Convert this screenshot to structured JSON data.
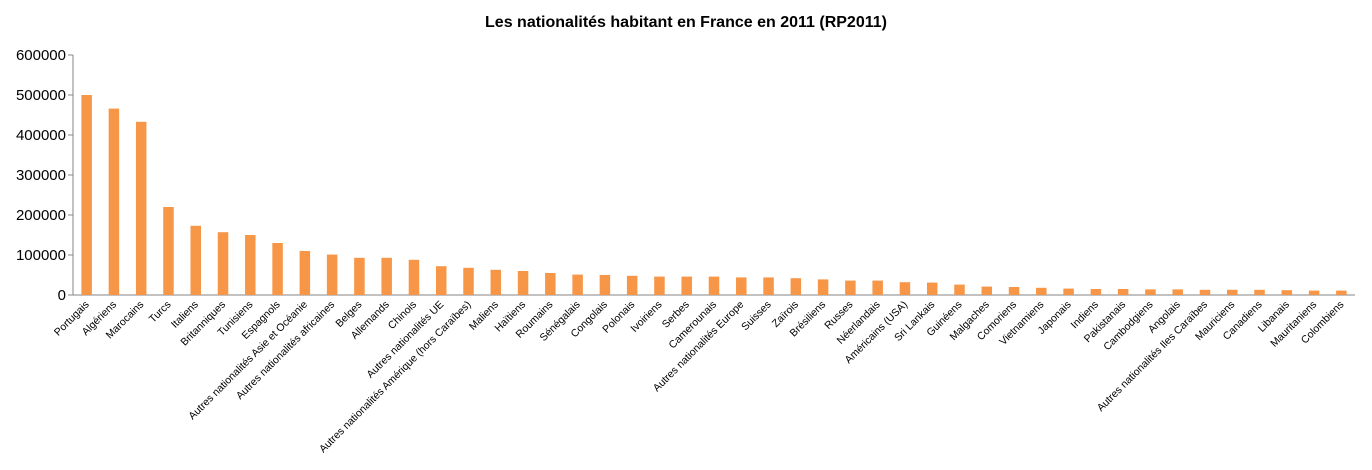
{
  "chart_data": {
    "type": "bar",
    "title": "Les nationalités habitant en France en 2011 (RP2011)",
    "xlabel": "",
    "ylabel": "",
    "ylim": [
      0,
      600000
    ],
    "yticks": [
      0,
      100000,
      200000,
      300000,
      400000,
      500000,
      600000
    ],
    "grid": false,
    "legend": "none",
    "bar_color": "#F79646",
    "categories": [
      "Portugais",
      "Algériens",
      "Marocains",
      "Turcs",
      "Italiens",
      "Britanniques",
      "Tunisiens",
      "Espagnols",
      "Autres nationalités Asie et Océanie",
      "Autres nationalités africaines",
      "Belges",
      "Allemands",
      "Chinois",
      "Autres nationalités UE",
      "Autres nationalités Amérique (hors Caraïbes)",
      "Maliens",
      "Haïtiens",
      "Roumains",
      "Sénégalais",
      "Congolais",
      "Polonais",
      "Ivoiriens",
      "Serbes",
      "Camerounais",
      "Autres nationalités Europe",
      "Suisses",
      "Zaïrois",
      "Brésiliens",
      "Russes",
      "Néerlandais",
      "Américains (USA)",
      "Sri Lankais",
      "Guinéens",
      "Malgaches",
      "Comoriens",
      "Vietnamiens",
      "Japonais",
      "Indiens",
      "Pakistanais",
      "Cambodgiens",
      "Angolais",
      "Autres nationalités Iles Caraïbes",
      "Mauriciens",
      "Canadiens",
      "Libanais",
      "Mauritaniens",
      "Colombiens"
    ],
    "values": [
      500000,
      466000,
      433000,
      220000,
      173000,
      157000,
      150000,
      130000,
      110000,
      101000,
      93000,
      93000,
      88000,
      72000,
      68000,
      63000,
      60000,
      55000,
      51000,
      50000,
      48000,
      46000,
      46000,
      46000,
      44000,
      44000,
      42000,
      39000,
      36000,
      36000,
      32000,
      31000,
      26000,
      21000,
      20000,
      18000,
      16000,
      15000,
      15000,
      14000,
      14000,
      13000,
      13000,
      13000,
      12000,
      11000,
      11000
    ]
  }
}
